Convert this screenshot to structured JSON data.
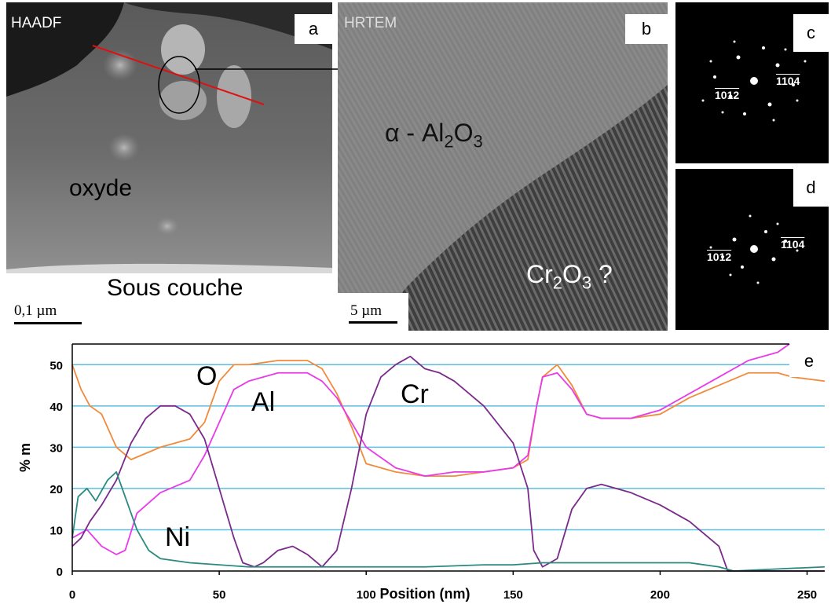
{
  "panels": {
    "a": {
      "letter": "a",
      "mode": "HAADF",
      "label_oxide": "oxyde",
      "label_sublayer": "Sous couche",
      "scale": "0,1 µm"
    },
    "b": {
      "letter": "b",
      "mode": "HRTEM",
      "phase1": "α - Al",
      "phase1_sub1": "2",
      "phase1_mid": "O",
      "phase1_sub2": "3",
      "phase2_a": "Cr",
      "phase2_sub1": "2",
      "phase2_mid": "O",
      "phase2_sub2": "3",
      "phase2_q": " ?",
      "scale": "5 µm"
    },
    "c": {
      "letter": "c",
      "spot1": "1012",
      "spot2": "1104"
    },
    "d": {
      "letter": "d",
      "spot1": "1012",
      "spot2": "1104"
    },
    "e": {
      "letter": "e"
    }
  },
  "chart_data": {
    "type": "line",
    "xlabel": "Position (nm)",
    "ylabel": "% m",
    "xlim": [
      0,
      256
    ],
    "ylim": [
      0,
      55
    ],
    "xticks": [
      0,
      50,
      100,
      150,
      200,
      250
    ],
    "yticks": [
      0,
      10,
      20,
      30,
      40,
      50
    ],
    "grid": "horizontal",
    "colors": {
      "O": "#f28a3c",
      "Al": "#e83ae8",
      "Cr": "#7a2a8a",
      "Ni": "#2a8a80",
      "grid": "#5bc0de"
    },
    "series": [
      {
        "name": "O",
        "x": [
          0,
          3,
          6,
          10,
          15,
          20,
          30,
          40,
          45,
          50,
          55,
          60,
          70,
          80,
          85,
          90,
          95,
          100,
          110,
          120,
          130,
          140,
          150,
          155,
          158,
          160,
          165,
          170,
          175,
          180,
          190,
          200,
          210,
          220,
          230,
          240,
          245,
          256
        ],
        "y": [
          50,
          44,
          40,
          38,
          30,
          27,
          30,
          32,
          36,
          46,
          50,
          50,
          51,
          51,
          49,
          43,
          35,
          26,
          24,
          23,
          23,
          24,
          25,
          27,
          40,
          47,
          50,
          45,
          38,
          37,
          37,
          38,
          42,
          45,
          48,
          48,
          47,
          46
        ]
      },
      {
        "name": "Al",
        "x": [
          0,
          5,
          10,
          15,
          18,
          22,
          30,
          40,
          45,
          50,
          55,
          60,
          70,
          80,
          85,
          90,
          95,
          100,
          110,
          120,
          130,
          140,
          150,
          155,
          158,
          160,
          165,
          170,
          175,
          180,
          190,
          200,
          210,
          220,
          230,
          240,
          244
        ],
        "y": [
          8,
          10,
          6,
          4,
          5,
          14,
          19,
          22,
          28,
          36,
          44,
          46,
          48,
          48,
          46,
          42,
          36,
          30,
          25,
          23,
          24,
          24,
          25,
          28,
          40,
          47,
          48,
          44,
          38,
          37,
          37,
          39,
          43,
          47,
          51,
          53,
          55
        ]
      },
      {
        "name": "Cr",
        "x": [
          0,
          3,
          6,
          10,
          15,
          20,
          25,
          30,
          35,
          40,
          45,
          50,
          55,
          58,
          62,
          65,
          70,
          75,
          80,
          85,
          90,
          95,
          100,
          105,
          110,
          115,
          120,
          125,
          130,
          140,
          150,
          155,
          157,
          160,
          165,
          170,
          175,
          180,
          190,
          200,
          210,
          215,
          220,
          223,
          230,
          256
        ],
        "y": [
          6,
          8,
          12,
          16,
          22,
          31,
          37,
          40,
          40,
          38,
          32,
          20,
          8,
          2,
          1,
          2,
          5,
          6,
          4,
          1,
          5,
          20,
          38,
          47,
          50,
          52,
          49,
          48,
          46,
          40,
          31,
          20,
          5,
          1,
          3,
          15,
          20,
          21,
          19,
          16,
          12,
          9,
          6,
          0,
          0,
          0
        ]
      },
      {
        "name": "Ni",
        "x": [
          0,
          2,
          5,
          8,
          12,
          15,
          18,
          22,
          26,
          30,
          40,
          50,
          60,
          80,
          100,
          120,
          140,
          150,
          160,
          180,
          200,
          210,
          220,
          225,
          240,
          256
        ],
        "y": [
          8,
          18,
          20,
          17,
          22,
          24,
          18,
          10,
          5,
          3,
          2,
          1.5,
          1,
          1,
          1,
          1,
          1.5,
          1.5,
          2,
          2,
          2,
          2,
          1,
          0,
          0.5,
          1
        ]
      }
    ],
    "annotations": [
      "O",
      "Al",
      "Cr",
      "Ni"
    ]
  }
}
